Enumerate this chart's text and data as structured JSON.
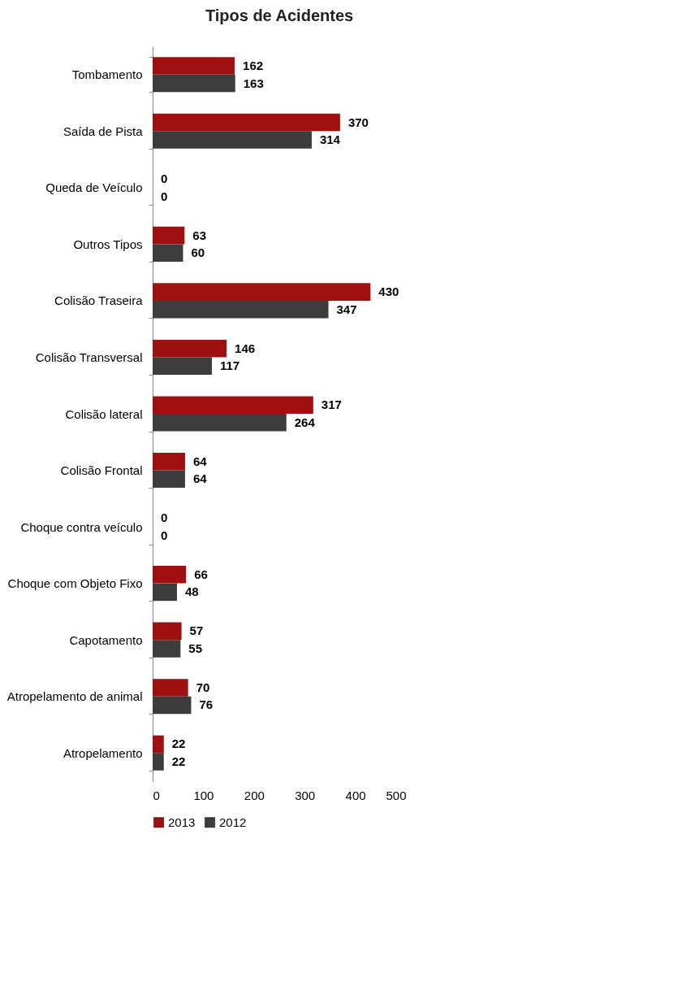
{
  "chart_data": {
    "type": "bar",
    "orientation": "horizontal",
    "title": "Tipos de Acidentes",
    "categories": [
      "Tombamento",
      "Saída de Pista",
      "Queda de Veículo",
      "Outros Tipos",
      "Colisão Traseira",
      "Colisão Transversal",
      "Colisão lateral",
      "Colisão Frontal",
      "Choque contra veículo",
      "Choque com Objeto Fixo",
      "Capotamento",
      "Atropelamento de animal",
      "Atropelamento"
    ],
    "series": [
      {
        "name": "2013",
        "color": "#a01010",
        "values": [
          162,
          370,
          0,
          63,
          430,
          146,
          317,
          64,
          0,
          66,
          57,
          70,
          22
        ]
      },
      {
        "name": "2012",
        "color": "#3c3c3c",
        "values": [
          163,
          314,
          0,
          60,
          347,
          117,
          264,
          64,
          0,
          48,
          55,
          76,
          22
        ]
      }
    ],
    "xlim": [
      0,
      500
    ],
    "xticks": [
      0,
      100,
      200,
      300,
      400,
      500
    ],
    "data_labels": true,
    "legend": "bottom",
    "grid": false
  }
}
